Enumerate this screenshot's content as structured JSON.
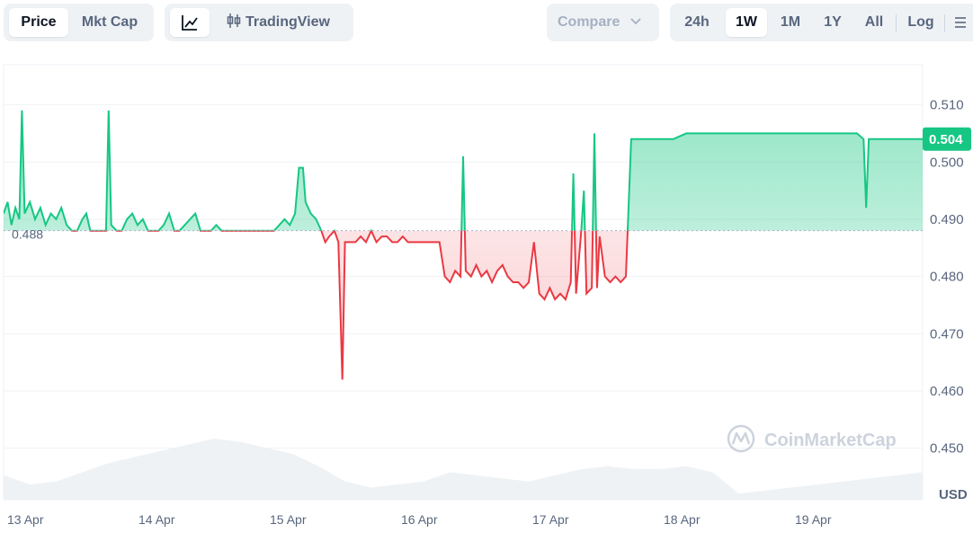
{
  "toolbar": {
    "left_tabs": [
      {
        "label": "Price",
        "active": true
      },
      {
        "label": "Mkt Cap",
        "active": false
      }
    ],
    "tradingview_label": "TradingView",
    "compare_label": "Compare",
    "ranges": [
      {
        "label": "24h",
        "active": false
      },
      {
        "label": "1W",
        "active": true
      },
      {
        "label": "1M",
        "active": false
      },
      {
        "label": "1Y",
        "active": false
      },
      {
        "label": "All",
        "active": false
      }
    ],
    "log_label": "Log",
    "line_chart_icon": "line-chart-icon",
    "candles_icon": "candlestick-icon",
    "more_icon": "menu-lines-icon"
  },
  "watermark": "CoinMarketCap",
  "colors": {
    "up": "#16c784",
    "down": "#ea3943",
    "grid": "#eff2f5",
    "axis_text": "#58667e",
    "volume": "#eff2f5"
  },
  "chart_data": {
    "type": "area",
    "currency_label": "USD",
    "reference_price": 0.488,
    "reference_label": "0.488",
    "current_price": 0.504,
    "current_label": "0.504",
    "ylim": [
      0.441,
      0.517
    ],
    "yticks": [
      0.51,
      0.5,
      0.49,
      0.48,
      0.47,
      0.46,
      0.45
    ],
    "ytick_labels": [
      "0.510",
      "0.500",
      "0.490",
      "0.480",
      "0.470",
      "0.460",
      "0.450"
    ],
    "xlim": [
      0,
      7.0
    ],
    "xticks": [
      0,
      1,
      2,
      3,
      4,
      5,
      6
    ],
    "xtick_labels": [
      "13 Apr",
      "14 Apr",
      "15 Apr",
      "16 Apr",
      "17 Apr",
      "18 Apr",
      "19 Apr"
    ],
    "grid": true,
    "price_series": [
      [
        0.0,
        0.491
      ],
      [
        0.03,
        0.493
      ],
      [
        0.06,
        0.489
      ],
      [
        0.09,
        0.492
      ],
      [
        0.12,
        0.49
      ],
      [
        0.14,
        0.509
      ],
      [
        0.16,
        0.491
      ],
      [
        0.2,
        0.493
      ],
      [
        0.24,
        0.49
      ],
      [
        0.28,
        0.492
      ],
      [
        0.32,
        0.489
      ],
      [
        0.36,
        0.491
      ],
      [
        0.4,
        0.49
      ],
      [
        0.44,
        0.492
      ],
      [
        0.48,
        0.489
      ],
      [
        0.52,
        0.488
      ],
      [
        0.56,
        0.488
      ],
      [
        0.6,
        0.49
      ],
      [
        0.63,
        0.491
      ],
      [
        0.66,
        0.488
      ],
      [
        0.7,
        0.488
      ],
      [
        0.74,
        0.488
      ],
      [
        0.78,
        0.488
      ],
      [
        0.8,
        0.509
      ],
      [
        0.82,
        0.489
      ],
      [
        0.86,
        0.488
      ],
      [
        0.9,
        0.488
      ],
      [
        0.94,
        0.49
      ],
      [
        0.98,
        0.491
      ],
      [
        1.02,
        0.489
      ],
      [
        1.06,
        0.49
      ],
      [
        1.1,
        0.488
      ],
      [
        1.14,
        0.488
      ],
      [
        1.18,
        0.488
      ],
      [
        1.22,
        0.489
      ],
      [
        1.26,
        0.491
      ],
      [
        1.3,
        0.488
      ],
      [
        1.34,
        0.488
      ],
      [
        1.38,
        0.489
      ],
      [
        1.42,
        0.49
      ],
      [
        1.46,
        0.491
      ],
      [
        1.5,
        0.488
      ],
      [
        1.54,
        0.488
      ],
      [
        1.58,
        0.488
      ],
      [
        1.62,
        0.489
      ],
      [
        1.66,
        0.488
      ],
      [
        1.7,
        0.488
      ],
      [
        1.74,
        0.488
      ],
      [
        1.78,
        0.488
      ],
      [
        1.82,
        0.488
      ],
      [
        1.86,
        0.488
      ],
      [
        1.9,
        0.488
      ],
      [
        1.94,
        0.488
      ],
      [
        1.98,
        0.488
      ],
      [
        2.02,
        0.488
      ],
      [
        2.06,
        0.488
      ],
      [
        2.1,
        0.489
      ],
      [
        2.14,
        0.49
      ],
      [
        2.18,
        0.489
      ],
      [
        2.22,
        0.491
      ],
      [
        2.25,
        0.499
      ],
      [
        2.28,
        0.499
      ],
      [
        2.3,
        0.493
      ],
      [
        2.34,
        0.491
      ],
      [
        2.38,
        0.49
      ],
      [
        2.42,
        0.488
      ],
      [
        2.45,
        0.486
      ],
      [
        2.48,
        0.487
      ],
      [
        2.52,
        0.488
      ],
      [
        2.55,
        0.486
      ],
      [
        2.58,
        0.462
      ],
      [
        2.6,
        0.486
      ],
      [
        2.64,
        0.486
      ],
      [
        2.68,
        0.486
      ],
      [
        2.72,
        0.487
      ],
      [
        2.76,
        0.486
      ],
      [
        2.8,
        0.488
      ],
      [
        2.84,
        0.486
      ],
      [
        2.88,
        0.487
      ],
      [
        2.92,
        0.487
      ],
      [
        2.96,
        0.486
      ],
      [
        3.0,
        0.486
      ],
      [
        3.04,
        0.487
      ],
      [
        3.08,
        0.486
      ],
      [
        3.12,
        0.486
      ],
      [
        3.16,
        0.486
      ],
      [
        3.2,
        0.486
      ],
      [
        3.24,
        0.486
      ],
      [
        3.28,
        0.486
      ],
      [
        3.32,
        0.486
      ],
      [
        3.36,
        0.48
      ],
      [
        3.4,
        0.479
      ],
      [
        3.44,
        0.481
      ],
      [
        3.48,
        0.48
      ],
      [
        3.5,
        0.501
      ],
      [
        3.52,
        0.481
      ],
      [
        3.56,
        0.48
      ],
      [
        3.6,
        0.482
      ],
      [
        3.64,
        0.48
      ],
      [
        3.68,
        0.481
      ],
      [
        3.72,
        0.479
      ],
      [
        3.76,
        0.481
      ],
      [
        3.8,
        0.482
      ],
      [
        3.84,
        0.48
      ],
      [
        3.88,
        0.479
      ],
      [
        3.92,
        0.479
      ],
      [
        3.96,
        0.478
      ],
      [
        4.0,
        0.479
      ],
      [
        4.04,
        0.486
      ],
      [
        4.08,
        0.477
      ],
      [
        4.12,
        0.476
      ],
      [
        4.16,
        0.478
      ],
      [
        4.2,
        0.476
      ],
      [
        4.24,
        0.477
      ],
      [
        4.28,
        0.476
      ],
      [
        4.32,
        0.479
      ],
      [
        4.34,
        0.498
      ],
      [
        4.36,
        0.477
      ],
      [
        4.4,
        0.488
      ],
      [
        4.42,
        0.495
      ],
      [
        4.44,
        0.477
      ],
      [
        4.48,
        0.478
      ],
      [
        4.5,
        0.505
      ],
      [
        4.52,
        0.478
      ],
      [
        4.54,
        0.487
      ],
      [
        4.58,
        0.48
      ],
      [
        4.62,
        0.479
      ],
      [
        4.66,
        0.48
      ],
      [
        4.7,
        0.479
      ],
      [
        4.74,
        0.48
      ],
      [
        4.78,
        0.504
      ],
      [
        4.82,
        0.504
      ],
      [
        4.9,
        0.504
      ],
      [
        5.0,
        0.504
      ],
      [
        5.1,
        0.504
      ],
      [
        5.2,
        0.505
      ],
      [
        5.3,
        0.505
      ],
      [
        5.4,
        0.505
      ],
      [
        5.5,
        0.505
      ],
      [
        5.6,
        0.505
      ],
      [
        5.7,
        0.505
      ],
      [
        5.8,
        0.505
      ],
      [
        5.9,
        0.505
      ],
      [
        6.0,
        0.505
      ],
      [
        6.1,
        0.505
      ],
      [
        6.2,
        0.505
      ],
      [
        6.3,
        0.505
      ],
      [
        6.4,
        0.505
      ],
      [
        6.5,
        0.505
      ],
      [
        6.55,
        0.504
      ],
      [
        6.57,
        0.492
      ],
      [
        6.59,
        0.504
      ],
      [
        6.7,
        0.504
      ],
      [
        6.8,
        0.504
      ],
      [
        6.9,
        0.504
      ],
      [
        7.0,
        0.504
      ]
    ],
    "volume_series": [
      [
        0.0,
        0.4
      ],
      [
        0.2,
        0.25
      ],
      [
        0.4,
        0.3
      ],
      [
        0.6,
        0.45
      ],
      [
        0.8,
        0.6
      ],
      [
        1.0,
        0.7
      ],
      [
        1.2,
        0.8
      ],
      [
        1.4,
        0.9
      ],
      [
        1.6,
        1.0
      ],
      [
        1.8,
        0.95
      ],
      [
        2.0,
        0.85
      ],
      [
        2.2,
        0.75
      ],
      [
        2.4,
        0.55
      ],
      [
        2.6,
        0.3
      ],
      [
        2.8,
        0.2
      ],
      [
        3.0,
        0.25
      ],
      [
        3.2,
        0.3
      ],
      [
        3.4,
        0.45
      ],
      [
        3.6,
        0.4
      ],
      [
        3.8,
        0.35
      ],
      [
        4.0,
        0.3
      ],
      [
        4.2,
        0.4
      ],
      [
        4.4,
        0.5
      ],
      [
        4.6,
        0.55
      ],
      [
        4.8,
        0.5
      ],
      [
        5.0,
        0.5
      ],
      [
        5.2,
        0.55
      ],
      [
        5.4,
        0.45
      ],
      [
        5.6,
        0.1
      ],
      [
        5.8,
        0.15
      ],
      [
        6.0,
        0.2
      ],
      [
        6.2,
        0.25
      ],
      [
        6.4,
        0.3
      ],
      [
        6.6,
        0.35
      ],
      [
        6.8,
        0.4
      ],
      [
        7.0,
        0.45
      ]
    ]
  }
}
